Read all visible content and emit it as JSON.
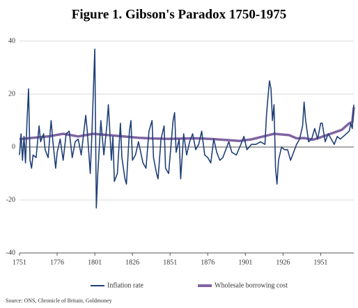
{
  "chart_data": {
    "type": "line",
    "title": "Figure 1. Gibson's Paradox 1750-1975",
    "source": "Source: ONS, Chronicle of Britain, Goldmoney",
    "xlim": [
      1751,
      1973
    ],
    "xticks": [
      1751,
      1776,
      1801,
      1826,
      1851,
      1876,
      1901,
      1926,
      1951
    ],
    "ylim": [
      -40,
      40
    ],
    "yticks": [
      40,
      20,
      0,
      -20,
      -40
    ],
    "grid": true,
    "legend": "bottom",
    "series": [
      {
        "name": "Inflation rate",
        "color": "#1f3f77",
        "x": [
          1751,
          1752,
          1753,
          1754,
          1755,
          1756,
          1757,
          1758,
          1759,
          1760,
          1762,
          1764,
          1765,
          1767,
          1768,
          1770,
          1772,
          1773,
          1775,
          1776,
          1778,
          1780,
          1782,
          1784,
          1786,
          1788,
          1790,
          1792,
          1795,
          1796,
          1798,
          1799,
          1800,
          1801,
          1802,
          1803,
          1805,
          1807,
          1809,
          1810,
          1812,
          1813,
          1814,
          1816,
          1818,
          1819,
          1821,
          1822,
          1824,
          1825,
          1826,
          1828,
          1830,
          1833,
          1835,
          1837,
          1839,
          1840,
          1842,
          1843,
          1845,
          1847,
          1848,
          1850,
          1853,
          1854,
          1855,
          1857,
          1858,
          1860,
          1862,
          1864,
          1866,
          1868,
          1870,
          1872,
          1874,
          1876,
          1878,
          1880,
          1882,
          1884,
          1886,
          1888,
          1890,
          1892,
          1895,
          1898,
          1900,
          1902,
          1905,
          1908,
          1911,
          1914,
          1915,
          1916,
          1917,
          1918,
          1919,
          1920,
          1921,
          1922,
          1923,
          1925,
          1927,
          1929,
          1931,
          1933,
          1935,
          1937,
          1939,
          1940,
          1941,
          1943,
          1945,
          1947,
          1949,
          1951,
          1952,
          1954,
          1956,
          1958,
          1960,
          1962,
          1964,
          1966,
          1968,
          1970,
          1971,
          1972,
          1973
        ],
        "values": [
          -3,
          5,
          -5,
          4,
          -6,
          10,
          22,
          -5,
          -8,
          -3,
          -4,
          8,
          2,
          5,
          -1,
          -4,
          10,
          3,
          -8,
          -2,
          3,
          -5,
          5,
          6,
          -4,
          2,
          3,
          -3,
          12,
          6,
          -10,
          4,
          20,
          37,
          -23,
          -10,
          10,
          -3,
          8,
          16,
          -5,
          4,
          -13,
          -10,
          9,
          -4,
          -12,
          -14,
          6,
          10,
          -5,
          -3,
          2,
          -6,
          -8,
          6,
          10,
          -4,
          -10,
          -12,
          3,
          8,
          -8,
          -10,
          10,
          13,
          -2,
          3,
          -12,
          5,
          -3,
          2,
          5,
          -1,
          1,
          6,
          -3,
          -4,
          -6,
          3,
          -2,
          -5,
          -4,
          -1,
          2,
          -2,
          -3,
          1,
          4,
          -1,
          1,
          1,
          2,
          1,
          12,
          19,
          25,
          22,
          10,
          16,
          -8,
          -14,
          -5,
          0,
          -1,
          -1,
          -5,
          -2,
          1,
          3,
          8,
          17,
          10,
          2,
          3,
          7,
          3,
          9,
          9,
          2,
          5,
          3,
          1,
          4,
          3,
          4,
          5,
          6,
          9,
          7,
          16
        ]
      },
      {
        "name": "Wholesale borrowing cost",
        "color": "#8064a2",
        "x": [
          1751,
          1760,
          1770,
          1780,
          1785,
          1790,
          1800,
          1810,
          1820,
          1830,
          1840,
          1850,
          1860,
          1870,
          1880,
          1890,
          1897,
          1905,
          1915,
          1920,
          1930,
          1935,
          1940,
          1946,
          1950,
          1955,
          1960,
          1965,
          1970,
          1972,
          1973
        ],
        "values": [
          3,
          3.5,
          4,
          5,
          4.5,
          4,
          5,
          4.5,
          4,
          3.5,
          3.2,
          3.1,
          3.2,
          3.3,
          3,
          2.6,
          2.3,
          2.9,
          4.3,
          5,
          4.5,
          3.3,
          3.4,
          2.8,
          3.5,
          4.5,
          5.5,
          6.5,
          9,
          9.5,
          15
        ]
      }
    ]
  }
}
